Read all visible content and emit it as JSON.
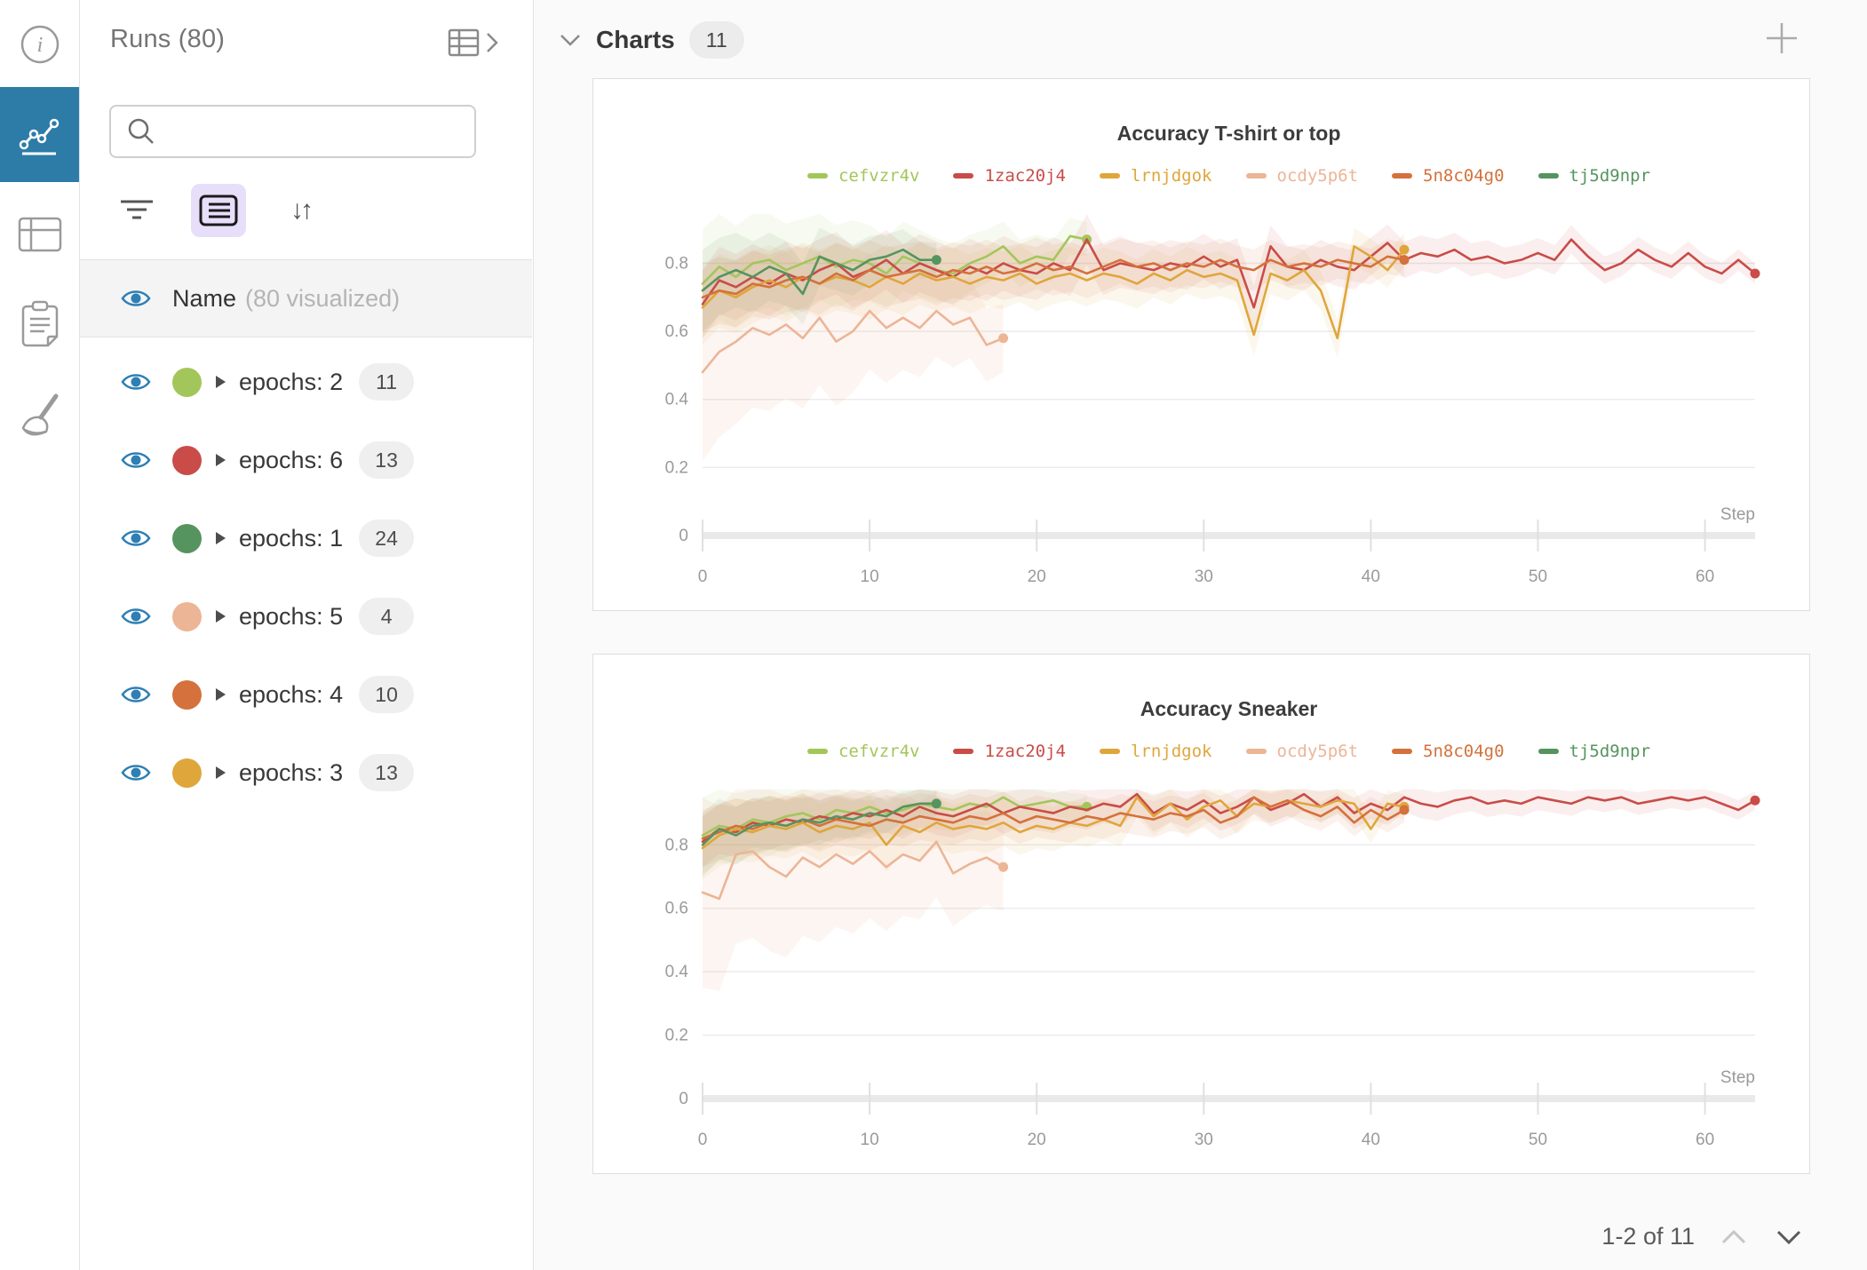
{
  "sidebar": {
    "icons": [
      "info-icon",
      "line-chart-icon",
      "table-icon",
      "clipboard-icon",
      "broom-icon"
    ],
    "active_icon": "line-chart-icon",
    "active_color": "#2d7ca8"
  },
  "runs_panel": {
    "title": "Runs (80)",
    "search_placeholder": "",
    "controls": [
      "filter-icon",
      "list-view-icon",
      "sort-icon"
    ],
    "header_row": {
      "label": "Name",
      "sublabel": "(80 visualized)"
    },
    "eye_color": "#2e7fb4",
    "groups": [
      {
        "label": "epochs: 2",
        "count": "11",
        "color": "#a3c65a"
      },
      {
        "label": "epochs: 6",
        "count": "13",
        "color": "#c94c48"
      },
      {
        "label": "epochs: 1",
        "count": "24",
        "color": "#55945e"
      },
      {
        "label": "epochs: 5",
        "count": "4",
        "color": "#ecb596"
      },
      {
        "label": "epochs: 4",
        "count": "10",
        "color": "#d4713c"
      },
      {
        "label": "epochs: 3",
        "count": "13",
        "color": "#dfa63c"
      }
    ]
  },
  "charts_header": {
    "title": "Charts",
    "count": "11"
  },
  "pagination": {
    "label": "1-2 of 11"
  },
  "chart_data": [
    {
      "type": "line",
      "title": "Accuracy T-shirt or top",
      "xlabel": "Step",
      "ylabel": "",
      "xlim": [
        0,
        63
      ],
      "ylim": [
        0,
        0.95
      ],
      "x_ticks": [
        0,
        10,
        20,
        30,
        40,
        50,
        60
      ],
      "y_ticks": [
        0,
        0.2,
        0.4,
        0.6,
        0.8
      ],
      "grid": true,
      "legend_position": "top",
      "series": [
        {
          "name": "cefvzr4v",
          "color": "#a3c65a",
          "band": [
            0.16,
            0.05
          ],
          "values": [
            0.74,
            0.79,
            0.76,
            0.8,
            0.81,
            0.78,
            0.8,
            0.82,
            0.79,
            0.81,
            0.8,
            0.77,
            0.82,
            0.8,
            0.78,
            0.77,
            0.8,
            0.82,
            0.85,
            0.8,
            0.82,
            0.81,
            0.88,
            0.87
          ]
        },
        {
          "name": "1zac20j4",
          "color": "#c94c48",
          "band": [
            0.1,
            0.03
          ],
          "values": [
            0.68,
            0.75,
            0.73,
            0.76,
            0.74,
            0.77,
            0.75,
            0.78,
            0.8,
            0.76,
            0.78,
            0.81,
            0.77,
            0.8,
            0.78,
            0.76,
            0.79,
            0.77,
            0.8,
            0.78,
            0.77,
            0.8,
            0.78,
            0.87,
            0.78,
            0.8,
            0.79,
            0.78,
            0.8,
            0.79,
            0.82,
            0.79,
            0.81,
            0.67,
            0.85,
            0.79,
            0.78,
            0.81,
            0.79,
            0.78,
            0.82,
            0.86,
            0.81,
            0.83,
            0.82,
            0.84,
            0.81,
            0.82,
            0.8,
            0.81,
            0.83,
            0.81,
            0.87,
            0.82,
            0.78,
            0.8,
            0.84,
            0.81,
            0.79,
            0.83,
            0.79,
            0.77,
            0.81,
            0.77
          ]
        },
        {
          "name": "lrnjdgok",
          "color": "#dfa63c",
          "band": [
            0.11,
            0.05
          ],
          "values": [
            0.67,
            0.72,
            0.7,
            0.73,
            0.75,
            0.73,
            0.76,
            0.74,
            0.76,
            0.75,
            0.73,
            0.76,
            0.74,
            0.77,
            0.75,
            0.76,
            0.74,
            0.76,
            0.75,
            0.77,
            0.74,
            0.76,
            0.77,
            0.75,
            0.77,
            0.76,
            0.74,
            0.77,
            0.75,
            0.78,
            0.76,
            0.77,
            0.75,
            0.59,
            0.77,
            0.75,
            0.78,
            0.72,
            0.58,
            0.85,
            0.82,
            0.78,
            0.84
          ]
        },
        {
          "name": "ocdy5p6t",
          "color": "#ecb596",
          "band": [
            0.26,
            0.1
          ],
          "values": [
            0.48,
            0.54,
            0.57,
            0.61,
            0.59,
            0.62,
            0.58,
            0.64,
            0.57,
            0.6,
            0.66,
            0.61,
            0.64,
            0.61,
            0.66,
            0.62,
            0.64,
            0.56,
            0.58
          ]
        },
        {
          "name": "5n8c04g0",
          "color": "#d4713c",
          "band": [
            0.1,
            0.05
          ],
          "values": [
            0.7,
            0.72,
            0.71,
            0.74,
            0.73,
            0.75,
            0.76,
            0.74,
            0.77,
            0.75,
            0.78,
            0.76,
            0.77,
            0.78,
            0.76,
            0.78,
            0.77,
            0.79,
            0.77,
            0.78,
            0.8,
            0.78,
            0.79,
            0.77,
            0.79,
            0.81,
            0.79,
            0.8,
            0.78,
            0.8,
            0.79,
            0.81,
            0.79,
            0.78,
            0.81,
            0.79,
            0.8,
            0.79,
            0.81,
            0.8,
            0.79,
            0.82,
            0.81
          ]
        },
        {
          "name": "tj5d9npr",
          "color": "#55945e",
          "band": [
            0.12,
            0.05
          ],
          "values": [
            0.72,
            0.76,
            0.78,
            0.76,
            0.79,
            0.77,
            0.71,
            0.82,
            0.8,
            0.78,
            0.81,
            0.82,
            0.84,
            0.81,
            0.81
          ]
        }
      ]
    },
    {
      "type": "line",
      "title": "Accuracy Sneaker",
      "xlabel": "Step",
      "ylabel": "",
      "xlim": [
        0,
        63
      ],
      "ylim": [
        0,
        0.98
      ],
      "x_ticks": [
        0,
        10,
        20,
        30,
        40,
        50,
        60
      ],
      "y_ticks": [
        0,
        0.2,
        0.4,
        0.6,
        0.8
      ],
      "grid": true,
      "legend_position": "top",
      "series": [
        {
          "name": "cefvzr4v",
          "color": "#a3c65a",
          "band": [
            0.12,
            0.04
          ],
          "values": [
            0.83,
            0.86,
            0.85,
            0.88,
            0.87,
            0.89,
            0.9,
            0.88,
            0.91,
            0.9,
            0.92,
            0.9,
            0.91,
            0.93,
            0.92,
            0.91,
            0.93,
            0.92,
            0.95,
            0.92,
            0.93,
            0.94,
            0.92,
            0.92
          ]
        },
        {
          "name": "1zac20j4",
          "color": "#c94c48",
          "band": [
            0.08,
            0.03
          ],
          "values": [
            0.81,
            0.85,
            0.84,
            0.87,
            0.86,
            0.88,
            0.87,
            0.89,
            0.88,
            0.9,
            0.89,
            0.91,
            0.89,
            0.92,
            0.9,
            0.89,
            0.91,
            0.93,
            0.9,
            0.92,
            0.91,
            0.9,
            0.92,
            0.91,
            0.93,
            0.92,
            0.96,
            0.9,
            0.93,
            0.91,
            0.94,
            0.9,
            0.92,
            0.95,
            0.91,
            0.93,
            0.96,
            0.92,
            0.95,
            0.9,
            0.93,
            0.91,
            0.95,
            0.93,
            0.92,
            0.94,
            0.95,
            0.93,
            0.94,
            0.93,
            0.95,
            0.94,
            0.93,
            0.95,
            0.94,
            0.95,
            0.93,
            0.94,
            0.95,
            0.94,
            0.95,
            0.93,
            0.91,
            0.94
          ]
        },
        {
          "name": "lrnjdgok",
          "color": "#dfa63c",
          "band": [
            0.1,
            0.04
          ],
          "values": [
            0.79,
            0.83,
            0.85,
            0.84,
            0.86,
            0.85,
            0.87,
            0.84,
            0.86,
            0.85,
            0.87,
            0.8,
            0.86,
            0.84,
            0.87,
            0.85,
            0.86,
            0.85,
            0.87,
            0.84,
            0.86,
            0.85,
            0.87,
            0.86,
            0.88,
            0.86,
            0.95,
            0.89,
            0.93,
            0.88,
            0.92,
            0.94,
            0.89,
            0.93,
            0.92,
            0.94,
            0.93,
            0.92,
            0.94,
            0.93,
            0.85,
            0.93,
            0.92
          ]
        },
        {
          "name": "ocdy5p6t",
          "color": "#ecb596",
          "band": [
            0.3,
            0.14
          ],
          "values": [
            0.65,
            0.63,
            0.77,
            0.78,
            0.73,
            0.7,
            0.76,
            0.73,
            0.77,
            0.74,
            0.78,
            0.73,
            0.77,
            0.75,
            0.81,
            0.71,
            0.74,
            0.76,
            0.73
          ]
        },
        {
          "name": "5n8c04g0",
          "color": "#d4713c",
          "band": [
            0.09,
            0.04
          ],
          "values": [
            0.82,
            0.84,
            0.86,
            0.85,
            0.87,
            0.86,
            0.88,
            0.86,
            0.88,
            0.87,
            0.86,
            0.88,
            0.87,
            0.89,
            0.88,
            0.87,
            0.89,
            0.88,
            0.9,
            0.87,
            0.89,
            0.88,
            0.87,
            0.89,
            0.88,
            0.9,
            0.89,
            0.88,
            0.9,
            0.89,
            0.91,
            0.87,
            0.89,
            0.95,
            0.92,
            0.94,
            0.91,
            0.89,
            0.92,
            0.87,
            0.91,
            0.88,
            0.91
          ]
        },
        {
          "name": "tj5d9npr",
          "color": "#55945e",
          "band": [
            0.1,
            0.04
          ],
          "values": [
            0.8,
            0.85,
            0.83,
            0.86,
            0.87,
            0.86,
            0.88,
            0.87,
            0.89,
            0.88,
            0.9,
            0.89,
            0.92,
            0.93,
            0.93
          ]
        }
      ]
    }
  ]
}
